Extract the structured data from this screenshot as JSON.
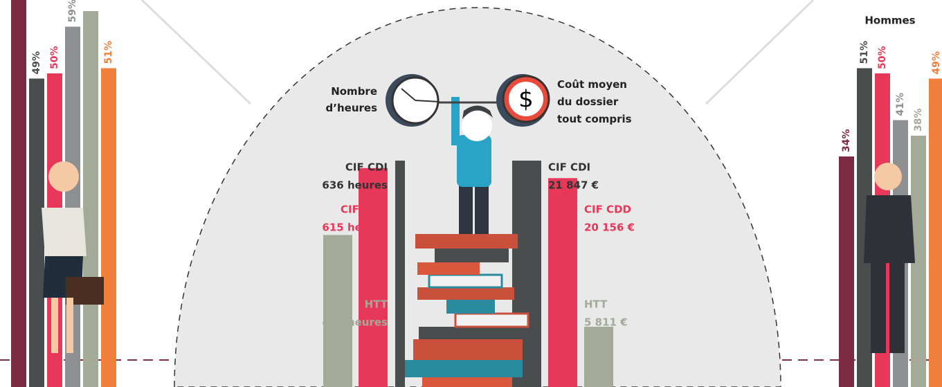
{
  "women_bars": {
    "values": [
      66,
      49,
      50,
      59,
      62,
      51
    ],
    "value_labels": [
      null,
      "49%",
      "50%",
      "59%",
      null,
      "51%"
    ],
    "colors": [
      "#7d2a45",
      "#4a4d4e",
      "#e8385a",
      "#8e8f91",
      "#a3ab98",
      "#f07f3c"
    ]
  },
  "men_bars": {
    "title": "Hommes",
    "values": [
      34,
      51,
      50,
      41,
      38,
      49
    ],
    "value_labels": [
      "34%",
      "51%",
      "50%",
      "41%",
      "38%",
      "49%"
    ],
    "colors": [
      "#7d2a45",
      "#4a4d4e",
      "#e8385a",
      "#8e8f91",
      "#a3ab98",
      "#f07f3c"
    ]
  },
  "center": {
    "hours_title": [
      "Nombre",
      "d’heures"
    ],
    "cost_title": [
      "Coût moyen",
      "du dossier",
      "tout compris"
    ],
    "hours": [
      {
        "name": "CIF CDI",
        "value": 636,
        "label": "636 heures",
        "color": "#4a4d4e"
      },
      {
        "name": "CIF CDD",
        "value": 615,
        "label": "615 heures",
        "color": "#e8385a"
      },
      {
        "name": "HTT",
        "value": 427,
        "label": "427 heures",
        "color": "#a3ab98"
      }
    ],
    "costs": [
      {
        "name": "CIF CDI",
        "value": 21847,
        "label": "21 847 €",
        "color": "#4a4d4e"
      },
      {
        "name": "CIF CDD",
        "value": 20156,
        "label": "20 156 €",
        "color": "#e8385a"
      },
      {
        "name": "HTT",
        "value": 5811,
        "label": "5 811 €",
        "color": "#a3ab98"
      }
    ]
  }
}
